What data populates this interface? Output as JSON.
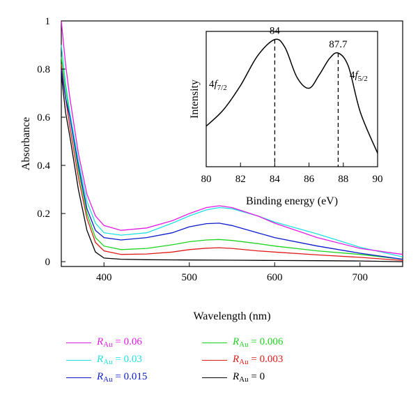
{
  "chart_data": [
    {
      "type": "line",
      "xlabel": "Wavelength (nm)",
      "ylabel": "Absorbance",
      "xlim": [
        350,
        750
      ],
      "ylim": [
        -0.02,
        1.0
      ],
      "x_ticks": [
        "400",
        "500",
        "600",
        "700"
      ],
      "y_ticks": [
        "0",
        "0.2",
        "0.4",
        "0.6",
        "0.8",
        "1"
      ],
      "series": [
        {
          "name": "R_Au = 0.06",
          "color": "#e21be2",
          "points": [
            [
              350,
              1.0
            ],
            [
              355,
              0.82
            ],
            [
              360,
              0.68
            ],
            [
              370,
              0.45
            ],
            [
              380,
              0.28
            ],
            [
              390,
              0.19
            ],
            [
              400,
              0.15
            ],
            [
              420,
              0.13
            ],
            [
              450,
              0.14
            ],
            [
              480,
              0.17
            ],
            [
              500,
              0.2
            ],
            [
              520,
              0.225
            ],
            [
              535,
              0.232
            ],
            [
              550,
              0.225
            ],
            [
              580,
              0.19
            ],
            [
              600,
              0.16
            ],
            [
              650,
              0.1
            ],
            [
              700,
              0.055
            ],
            [
              750,
              0.03
            ]
          ]
        },
        {
          "name": "R_Au = 0.03",
          "color": "#1fe0e0",
          "points": [
            [
              350,
              0.9
            ],
            [
              355,
              0.74
            ],
            [
              360,
              0.62
            ],
            [
              370,
              0.42
            ],
            [
              380,
              0.25
            ],
            [
              390,
              0.16
            ],
            [
              400,
              0.12
            ],
            [
              420,
              0.11
            ],
            [
              450,
              0.12
            ],
            [
              480,
              0.16
            ],
            [
              500,
              0.19
            ],
            [
              520,
              0.215
            ],
            [
              535,
              0.225
            ],
            [
              550,
              0.22
            ],
            [
              580,
              0.19
            ],
            [
              600,
              0.165
            ],
            [
              650,
              0.115
            ],
            [
              700,
              0.06
            ],
            [
              750,
              0.02
            ]
          ]
        },
        {
          "name": "R_Au = 0.015",
          "color": "#0a1acc",
          "points": [
            [
              350,
              0.8
            ],
            [
              355,
              0.68
            ],
            [
              360,
              0.6
            ],
            [
              370,
              0.4
            ],
            [
              380,
              0.22
            ],
            [
              390,
              0.13
            ],
            [
              400,
              0.1
            ],
            [
              420,
              0.09
            ],
            [
              450,
              0.1
            ],
            [
              480,
              0.12
            ],
            [
              500,
              0.145
            ],
            [
              520,
              0.158
            ],
            [
              535,
              0.16
            ],
            [
              550,
              0.15
            ],
            [
              580,
              0.12
            ],
            [
              600,
              0.1
            ],
            [
              650,
              0.065
            ],
            [
              700,
              0.035
            ],
            [
              750,
              0.01
            ]
          ]
        },
        {
          "name": "R_Au = 0.006",
          "color": "#1ed41e",
          "points": [
            [
              350,
              0.85
            ],
            [
              355,
              0.72
            ],
            [
              360,
              0.6
            ],
            [
              370,
              0.38
            ],
            [
              380,
              0.2
            ],
            [
              390,
              0.1
            ],
            [
              400,
              0.065
            ],
            [
              420,
              0.05
            ],
            [
              450,
              0.055
            ],
            [
              480,
              0.07
            ],
            [
              500,
              0.083
            ],
            [
              520,
              0.09
            ],
            [
              535,
              0.092
            ],
            [
              550,
              0.088
            ],
            [
              580,
              0.075
            ],
            [
              600,
              0.065
            ],
            [
              650,
              0.045
            ],
            [
              700,
              0.03
            ],
            [
              750,
              0.01
            ]
          ]
        },
        {
          "name": "R_Au = 0.003",
          "color": "#e01a1a",
          "points": [
            [
              350,
              0.82
            ],
            [
              355,
              0.68
            ],
            [
              360,
              0.56
            ],
            [
              370,
              0.35
            ],
            [
              380,
              0.18
            ],
            [
              390,
              0.08
            ],
            [
              400,
              0.045
            ],
            [
              420,
              0.03
            ],
            [
              450,
              0.032
            ],
            [
              480,
              0.04
            ],
            [
              500,
              0.05
            ],
            [
              520,
              0.056
            ],
            [
              535,
              0.058
            ],
            [
              550,
              0.055
            ],
            [
              580,
              0.045
            ],
            [
              600,
              0.04
            ],
            [
              650,
              0.028
            ],
            [
              700,
              0.018
            ],
            [
              750,
              0.005
            ]
          ]
        },
        {
          "name": "R_Au = 0",
          "color": "#000000",
          "points": [
            [
              350,
              0.78
            ],
            [
              355,
              0.62
            ],
            [
              360,
              0.52
            ],
            [
              370,
              0.3
            ],
            [
              380,
              0.13
            ],
            [
              390,
              0.04
            ],
            [
              400,
              0.015
            ],
            [
              420,
              0.01
            ],
            [
              450,
              0.008
            ],
            [
              500,
              0.007
            ],
            [
              550,
              0.006
            ],
            [
              600,
              0.005
            ],
            [
              650,
              0.004
            ],
            [
              700,
              0.003
            ],
            [
              750,
              0.0
            ]
          ]
        }
      ]
    },
    {
      "type": "line",
      "xlabel": "Binding energy (eV)",
      "ylabel": "Intensity",
      "xlim": [
        80,
        90
      ],
      "x_ticks": [
        "80",
        "82",
        "84",
        "86",
        "88",
        "90"
      ],
      "series": [
        {
          "name": "",
          "color": "#000000",
          "points": [
            [
              80,
              0.3
            ],
            [
              81,
              0.42
            ],
            [
              82,
              0.6
            ],
            [
              83,
              0.82
            ],
            [
              84,
              0.94
            ],
            [
              84.6,
              0.88
            ],
            [
              85.3,
              0.66
            ],
            [
              86,
              0.58
            ],
            [
              86.6,
              0.68
            ],
            [
              87.2,
              0.8
            ],
            [
              87.7,
              0.84
            ],
            [
              88.3,
              0.74
            ],
            [
              89,
              0.4
            ],
            [
              90,
              0.1
            ]
          ]
        }
      ],
      "annotations": [
        {
          "text": "84",
          "x": 84
        },
        {
          "text": "87.7",
          "x": 87.7
        }
      ],
      "peak_labels": {
        "left": {
          "main": "4",
          "italic": "f",
          "sub": "7/2"
        },
        "right": {
          "main": "4",
          "italic": "f",
          "sub": "5/2"
        }
      }
    }
  ],
  "legend": [
    {
      "sym": "R",
      "sub": "Au",
      "value": "= 0.06",
      "color": "#e21be2"
    },
    {
      "sym": "R",
      "sub": "Au",
      "value": "= 0.006",
      "color": "#1ed41e"
    },
    {
      "sym": "R",
      "sub": "Au",
      "value": "= 0.03",
      "color": "#1fe0e0"
    },
    {
      "sym": "R",
      "sub": "Au",
      "value": "= 0.003",
      "color": "#e01a1a"
    },
    {
      "sym": "R",
      "sub": "Au",
      "value": "= 0.015",
      "color": "#0a1acc"
    },
    {
      "sym": "R",
      "sub": "Au",
      "value": "= 0",
      "color": "#000000"
    }
  ]
}
